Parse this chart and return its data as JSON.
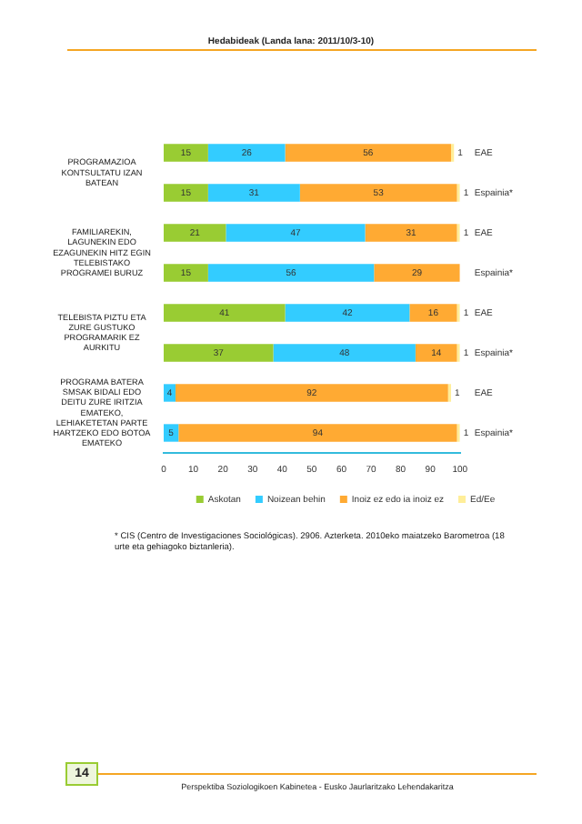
{
  "chart_data": {
    "type": "bar",
    "orientation": "horizontal",
    "stacked": true,
    "title": "Hedabideak (Landa lana: 2011/10/3-10)",
    "categories": [
      "EAE",
      "Espainia*",
      "EAE",
      "Espainia*",
      "EAE",
      "Espainia*",
      "EAE",
      "Espainia*"
    ],
    "series": [
      {
        "name": "Askotan",
        "color": "#99cc33",
        "values": [
          15,
          15,
          21,
          15,
          41,
          37,
          null,
          null
        ]
      },
      {
        "name": "Noizean behin",
        "color": "#33ccff",
        "values": [
          26,
          31,
          47,
          56,
          42,
          48,
          4,
          5
        ]
      },
      {
        "name": "Inoiz ez edo ia inoiz ez",
        "color": "#ffaa33",
        "values": [
          56,
          53,
          31,
          29,
          16,
          14,
          92,
          94
        ]
      },
      {
        "name": "Ed/Ee",
        "color": "#ffee99",
        "values": [
          1,
          1,
          1,
          null,
          1,
          1,
          1,
          1
        ]
      }
    ],
    "xlim": [
      0,
      100
    ],
    "xticks": [
      0,
      10,
      20,
      30,
      40,
      50,
      60,
      70,
      80,
      90,
      100
    ],
    "data_labels": true,
    "legend": "bottom",
    "grid": false,
    "annotations": [
      "PROGRAMAZIOA KONTSULTATU IZAN BATEAN",
      "FAMILIAREKIN, LAGUNEKIN EDO EZAGUNEKIN HITZ EGIN TELEBISTAKO PROGRAMEI BURUZ",
      "TELEBISTA PIZTU ETA ZURE GUSTUKO PROGRAMARIK EZ AURKITU",
      "PROGRAMA BATERA SMSAK BIDALI EDO DEITU ZURE IRITZIA EMATEKO, LEHIAKETETAN PARTE HARTZEKO EDO BOTOA EMATEKO",
      "* CIS (Centro de Investigaciones Sociológicas). 2906. Azterketa. 2010eko maiatzeko Barometroa (18 urte eta gehiagoko biztanleria).",
      "14",
      "Perspektiba Soziologikoen Kabinetea - Eusko Jaurlaritzako Lehendakaritza"
    ]
  }
}
